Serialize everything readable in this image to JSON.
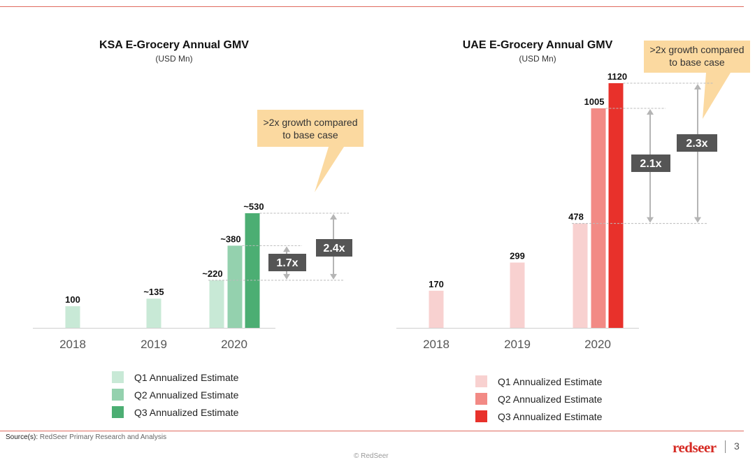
{
  "chart_data": [
    {
      "type": "bar",
      "title": "KSA E-Grocery Annual GMV",
      "subtitle": "(USD Mn)",
      "categories": [
        "2018",
        "2019",
        "2020"
      ],
      "bars": [
        {
          "category": "2018",
          "series": "Q1 Annualized Estimate",
          "value": 100,
          "label": "100"
        },
        {
          "category": "2019",
          "series": "Q1 Annualized Estimate",
          "value": 135,
          "label": "~135"
        },
        {
          "category": "2020",
          "series": "Q1 Annualized Estimate",
          "value": 220,
          "label": "~220"
        },
        {
          "category": "2020",
          "series": "Q2 Annualized Estimate",
          "value": 380,
          "label": "~380"
        },
        {
          "category": "2020",
          "series": "Q3 Annualized Estimate",
          "value": 530,
          "label": "~530"
        }
      ],
      "legend": [
        "Q1 Annualized Estimate",
        "Q2 Annualized Estimate",
        "Q3 Annualized Estimate"
      ],
      "colors": [
        "#c8e9d6",
        "#94d1ae",
        "#4cae73"
      ],
      "growth_markers": [
        {
          "from": 220,
          "to": 380,
          "label": "1.7x"
        },
        {
          "from": 220,
          "to": 530,
          "label": "2.4x"
        }
      ],
      "callout": [
        ">2x growth compared",
        "to base case"
      ]
    },
    {
      "type": "bar",
      "title": "UAE E-Grocery Annual GMV",
      "subtitle": "(USD Mn)",
      "categories": [
        "2018",
        "2019",
        "2020"
      ],
      "bars": [
        {
          "category": "2018",
          "series": "Q1 Annualized Estimate",
          "value": 170,
          "label": "170"
        },
        {
          "category": "2019",
          "series": "Q1 Annualized Estimate",
          "value": 299,
          "label": "299"
        },
        {
          "category": "2020",
          "series": "Q1 Annualized Estimate",
          "value": 478,
          "label": "478"
        },
        {
          "category": "2020",
          "series": "Q2 Annualized Estimate",
          "value": 1005,
          "label": "1005"
        },
        {
          "category": "2020",
          "series": "Q3 Annualized Estimate",
          "value": 1120,
          "label": "1120"
        }
      ],
      "legend": [
        "Q1 Annualized Estimate",
        "Q2 Annualized Estimate",
        "Q3 Annualized Estimate"
      ],
      "colors": [
        "#f8d1d0",
        "#f28a85",
        "#e8312b"
      ],
      "growth_markers": [
        {
          "from": 478,
          "to": 1005,
          "label": "2.1x"
        },
        {
          "from": 478,
          "to": 1120,
          "label": "2.3x"
        }
      ],
      "callout": [
        ">2x growth compared",
        "to base case"
      ]
    }
  ],
  "footer": {
    "source_label": "Source(s):",
    "source_text": " RedSeer Primary Research and Analysis",
    "copyright": "© RedSeer",
    "brand": "redseer",
    "page": "3"
  },
  "colors": {
    "rule": "#e06b5e",
    "marker_box": "#555555",
    "callout": "#fbd9a0"
  }
}
